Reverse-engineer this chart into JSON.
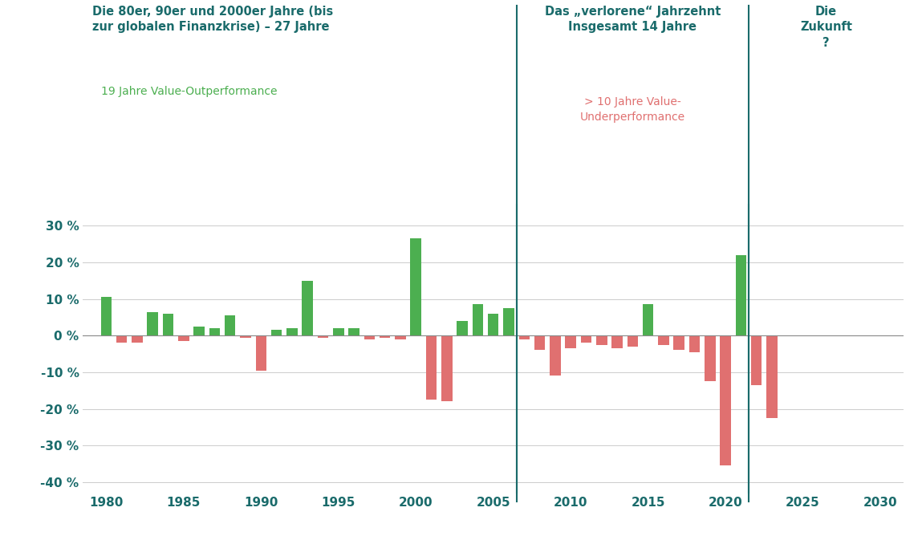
{
  "years": [
    1980,
    1981,
    1982,
    1983,
    1984,
    1985,
    1986,
    1987,
    1988,
    1989,
    1990,
    1991,
    1992,
    1993,
    1994,
    1995,
    1996,
    1997,
    1998,
    1999,
    2000,
    2001,
    2002,
    2003,
    2004,
    2005,
    2006,
    2007,
    2008,
    2009,
    2010,
    2011,
    2012,
    2013,
    2014,
    2015,
    2016,
    2017,
    2018,
    2019,
    2020,
    2021,
    2022,
    2023
  ],
  "values": [
    10.5,
    -2.0,
    -2.0,
    6.5,
    6.0,
    -1.5,
    2.5,
    2.0,
    5.5,
    -0.5,
    -9.5,
    1.5,
    2.0,
    15.0,
    -0.5,
    2.0,
    2.0,
    -1.0,
    -0.5,
    -1.0,
    26.5,
    -17.5,
    -18.0,
    4.0,
    8.5,
    6.0,
    7.5,
    -1.0,
    -4.0,
    -11.0,
    -3.5,
    -2.0,
    -2.5,
    -3.5,
    -3.0,
    8.5,
    -2.5,
    -4.0,
    -4.5,
    -12.5,
    -35.5,
    22.0,
    -13.5,
    -22.5
  ],
  "dividers": [
    2006.5,
    2021.5
  ],
  "green_color": "#4caf50",
  "red_color": "#e07070",
  "background_color": "#ffffff",
  "divider_color": "#1a6b6b",
  "grid_color": "#cccccc",
  "axis_color": "#1a6b6b",
  "ylim": [
    -43,
    36
  ],
  "yticks": [
    -40,
    -30,
    -20,
    -10,
    0,
    10,
    20,
    30
  ],
  "xlim": [
    1978.5,
    2031.5
  ],
  "xticks": [
    1980,
    1985,
    1990,
    1995,
    2000,
    2005,
    2010,
    2015,
    2020,
    2025,
    2030
  ],
  "bar_width": 0.7
}
